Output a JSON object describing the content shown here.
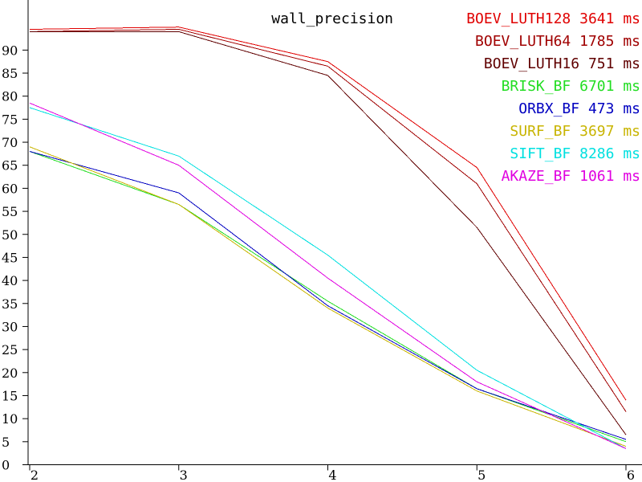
{
  "chart_data": {
    "type": "line",
    "title": "",
    "xlabel": "",
    "ylabel": "",
    "x": [
      2,
      3,
      4,
      5,
      6
    ],
    "xlim": [
      2,
      6
    ],
    "ylim": [
      0,
      95
    ],
    "x_ticks": [
      "2",
      "3",
      "4",
      "5",
      "6"
    ],
    "y_ticks": [
      "0",
      "5",
      "10",
      "15",
      "20",
      "25",
      "30",
      "35",
      "40",
      "45",
      "50",
      "55",
      "60",
      "65",
      "70",
      "75",
      "80",
      "85",
      "90"
    ],
    "grid": false,
    "legend_title": "wall_precision",
    "legend_position": "top-right",
    "series": [
      {
        "name": "BOEV_LUTH128",
        "time": "3641",
        "unit": "ms",
        "color": "#e00000",
        "values": [
          94.5,
          95.0,
          87.5,
          64.5,
          14.0
        ]
      },
      {
        "name": "BOEV_LUTH64",
        "time": "1785",
        "unit": "ms",
        "color": "#a00000",
        "values": [
          94.0,
          94.5,
          86.5,
          61.0,
          11.5
        ]
      },
      {
        "name": "BOEV_LUTH16",
        "time": "751",
        "unit": "ms",
        "color": "#600000",
        "values": [
          94.0,
          94.0,
          84.5,
          51.5,
          6.5
        ]
      },
      {
        "name": "BRISK_BF",
        "time": "6701",
        "unit": "ms",
        "color": "#22dd22",
        "values": [
          68.0,
          56.5,
          35.5,
          16.5,
          5.0
        ]
      },
      {
        "name": "ORBX_BF",
        "time": "473",
        "unit": "ms",
        "color": "#0000c0",
        "values": [
          68.0,
          59.0,
          34.5,
          16.5,
          5.5
        ]
      },
      {
        "name": "SURF_BF",
        "time": "3697",
        "unit": "ms",
        "color": "#c8b400",
        "values": [
          69.0,
          56.5,
          34.0,
          16.0,
          4.0
        ]
      },
      {
        "name": "SIFT_BF",
        "time": "8286",
        "unit": "ms",
        "color": "#00e0e0",
        "values": [
          77.5,
          67.0,
          45.5,
          20.5,
          3.5
        ]
      },
      {
        "name": "AKAZE_BF",
        "time": "1061",
        "unit": "ms",
        "color": "#e000e0",
        "values": [
          78.5,
          65.0,
          40.5,
          18.0,
          3.5
        ]
      }
    ]
  }
}
